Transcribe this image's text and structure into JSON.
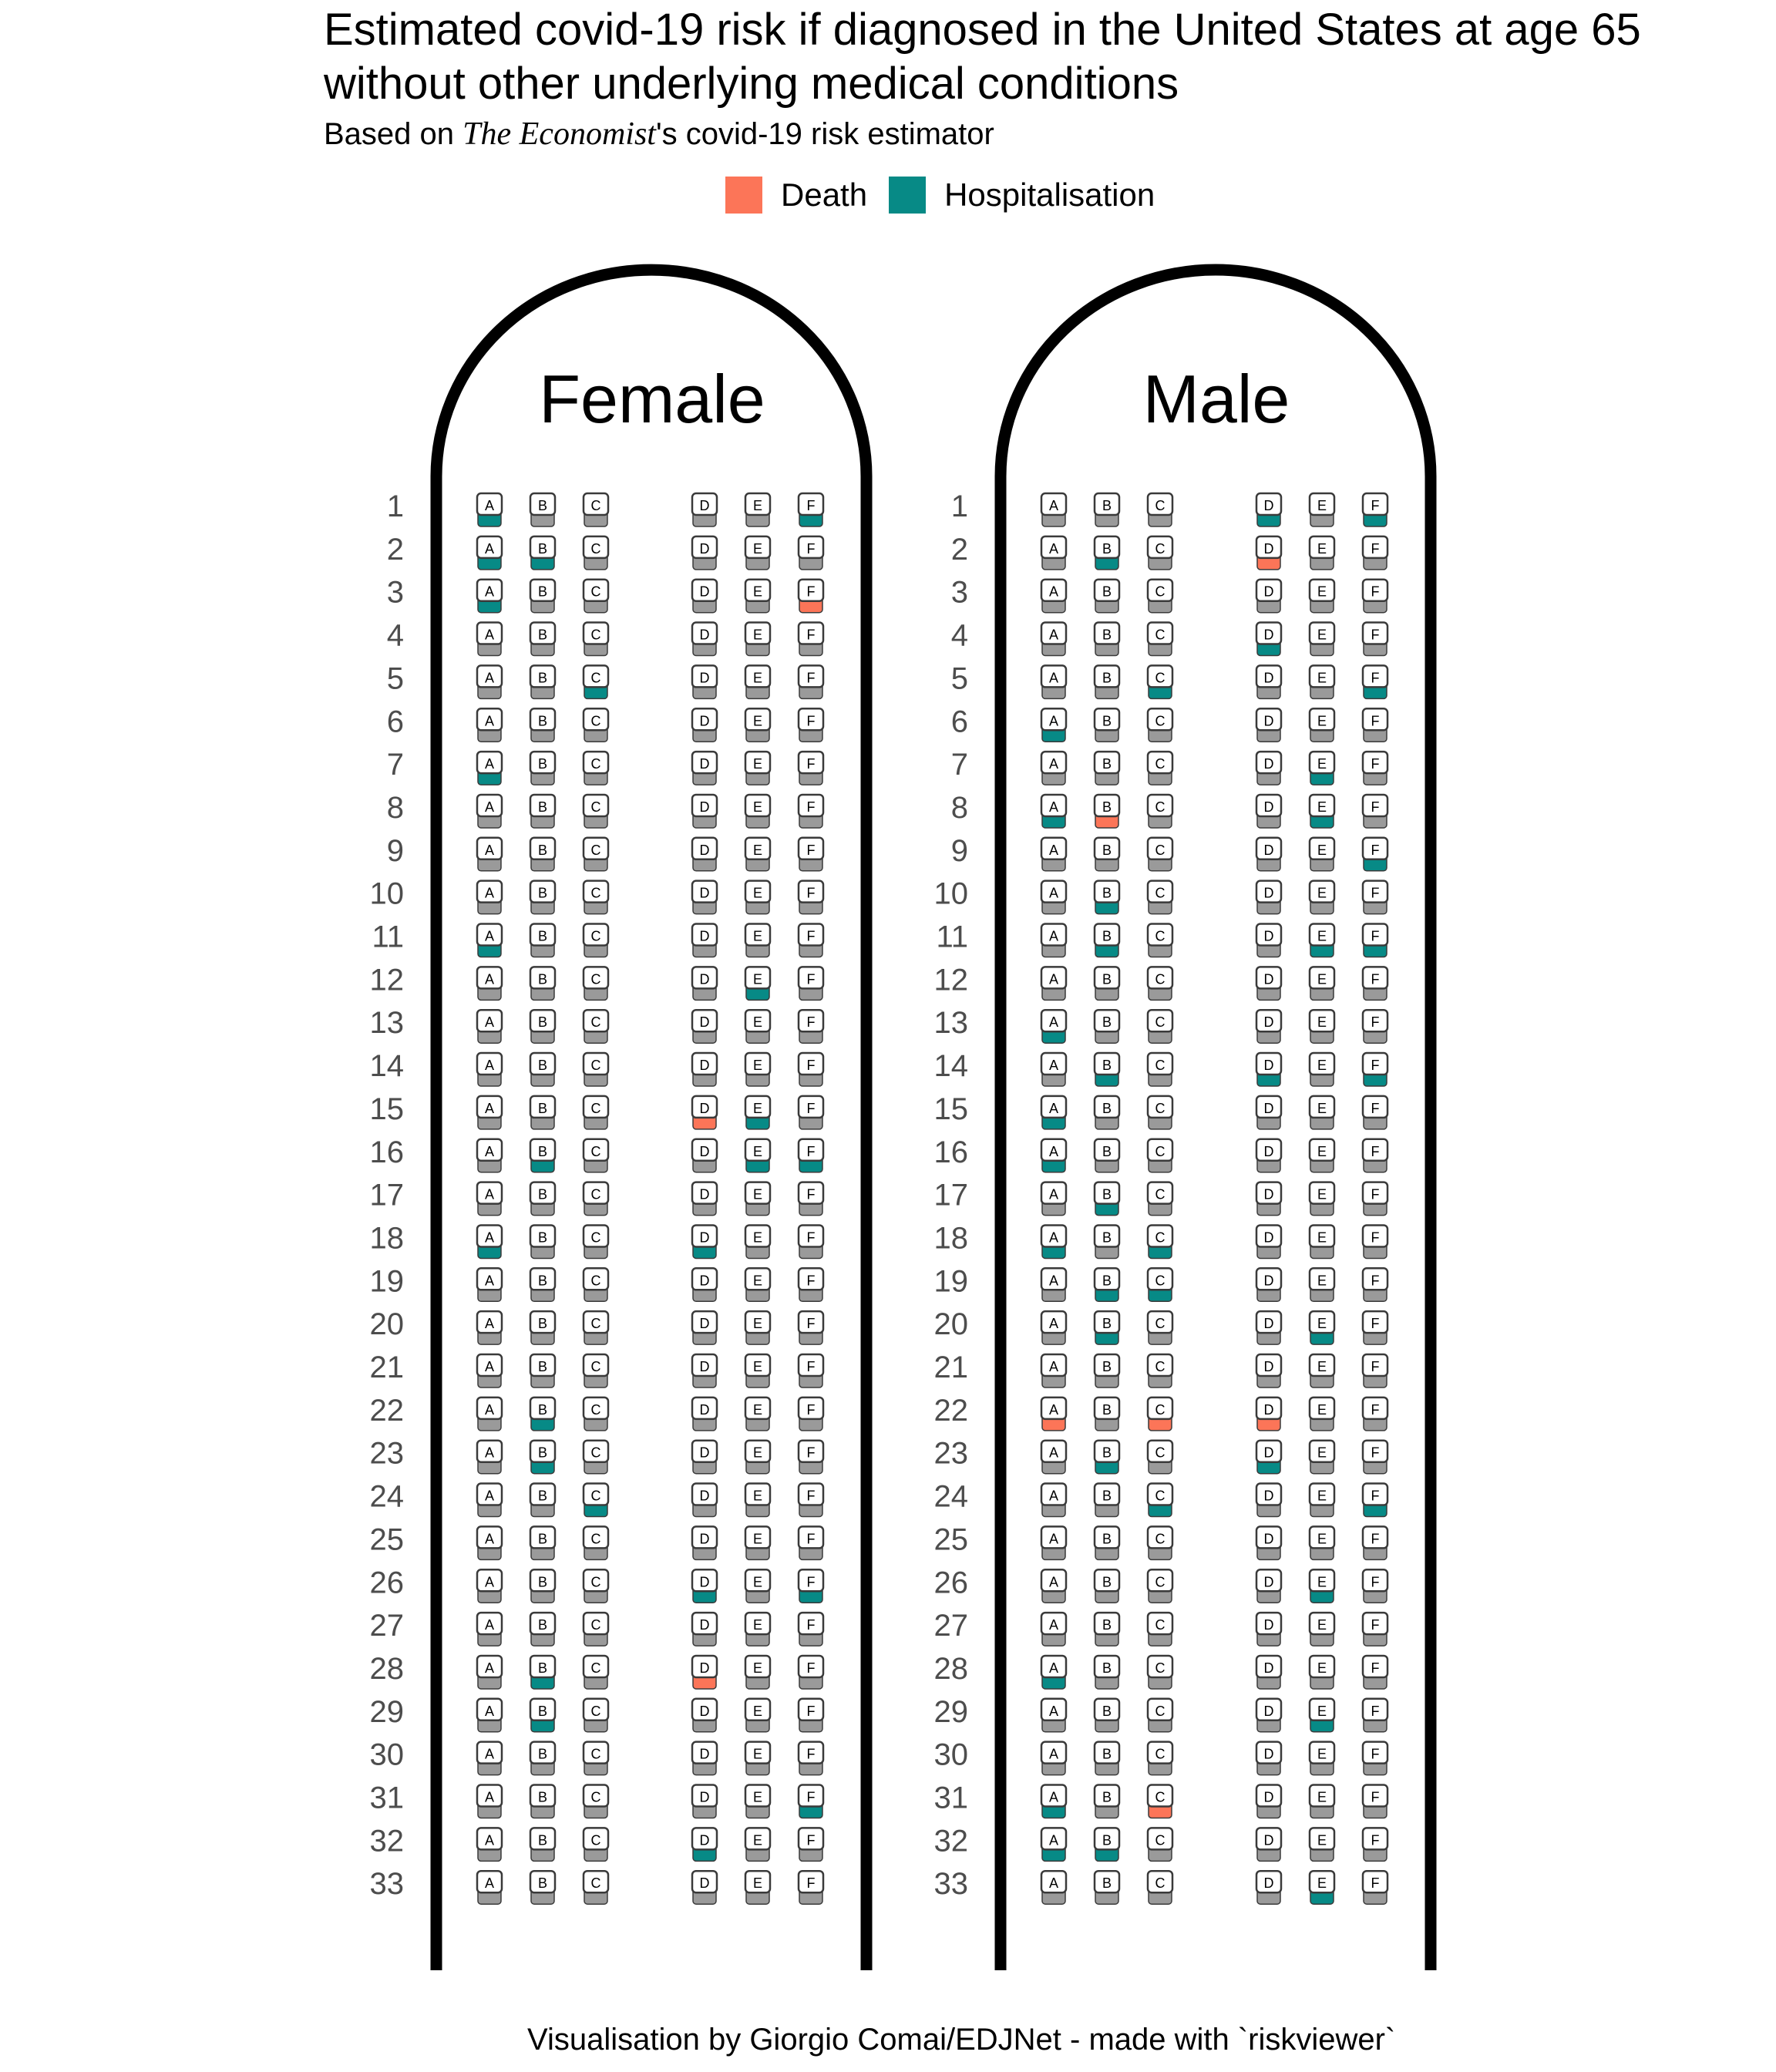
{
  "title_lines": [
    "Estimated covid-19 risk if diagnosed in the United States at age 65",
    "without other underlying medical conditions"
  ],
  "subtitle": {
    "prefix": "Based on ",
    "source": "The Economist",
    "suffix": "'s covid-19 risk estimator"
  },
  "legend": {
    "death": "Death",
    "hospitalisation": "Hospitalisation"
  },
  "colors": {
    "death": "#fc7558",
    "hospitalisation": "#078a86",
    "fuselage": "#000000",
    "seat_border": "#3a3a3a",
    "seat_base": "#9a9a9a"
  },
  "caption": "Visualisation by Giorgio Comai/EDJNet - made with `riskviewer`",
  "chart_data": {
    "type": "table",
    "description_of_encoding": "",
    "rows": [
      1,
      2,
      3,
      4,
      5,
      6,
      7,
      8,
      9,
      10,
      11,
      12,
      13,
      14,
      15,
      16,
      17,
      18,
      19,
      20,
      21,
      22,
      23,
      24,
      25,
      26,
      27,
      28,
      29,
      30,
      31,
      32,
      33
    ],
    "seat_letters": [
      "A",
      "B",
      "C",
      "D",
      "E",
      "F"
    ],
    "panels": [
      {
        "name": "Female",
        "death": [
          "3F",
          "15D",
          "28D"
        ],
        "hospitalisation": [
          "1A",
          "1F",
          "2A",
          "2B",
          "3A",
          "5C",
          "7A",
          "11A",
          "12E",
          "15E",
          "16B",
          "16E",
          "16F",
          "18A",
          "18D",
          "22B",
          "23B",
          "24C",
          "26D",
          "26F",
          "28B",
          "29B",
          "31F",
          "32D"
        ]
      },
      {
        "name": "Male",
        "death": [
          "2D",
          "8B",
          "22A",
          "22C",
          "22D",
          "31C"
        ],
        "hospitalisation": [
          "1D",
          "1F",
          "2B",
          "4D",
          "5C",
          "5F",
          "6A",
          "7E",
          "8A",
          "8E",
          "9F",
          "10B",
          "11B",
          "11E",
          "11F",
          "13A",
          "14B",
          "14D",
          "14F",
          "15A",
          "16A",
          "17B",
          "18A",
          "18C",
          "19B",
          "19C",
          "20B",
          "20E",
          "23B",
          "23D",
          "24C",
          "24F",
          "26E",
          "28A",
          "29E",
          "31A",
          "32A",
          "32B",
          "33E"
        ]
      }
    ]
  }
}
